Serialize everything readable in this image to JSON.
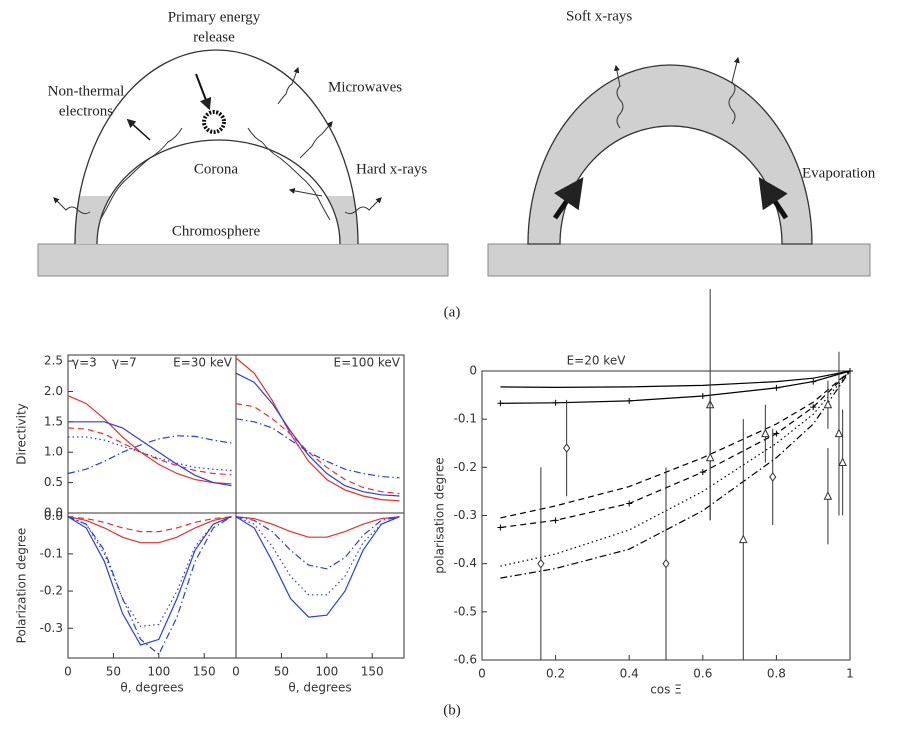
{
  "diagram": {
    "left": {
      "primary": [
        "Primary energy",
        "release"
      ],
      "nonthermal": [
        "Non-thermal",
        "electrons"
      ],
      "microwaves": "Microwaves",
      "corona": "Corona",
      "hardxrays": "Hard x-rays",
      "chromosphere": "Chromosphere"
    },
    "right": {
      "softxrays": "Soft x-rays",
      "evaporation": "Evaporation"
    },
    "label_a": "(a)",
    "label_b": "(b)"
  },
  "chart_data": [
    {
      "type": "line",
      "ylabel": "Directivity",
      "annotations": [
        {
          "text": "γ=3",
          "color": "#e8302a"
        },
        {
          "text": "γ=7",
          "color": "#2a3fe0"
        },
        {
          "text": "E=30 keV",
          "color": "#555555"
        }
      ],
      "xlim": [
        0,
        185
      ],
      "ylim": [
        0,
        2.6
      ],
      "yticks": [
        {
          "value": 0,
          "label": "0.0"
        },
        0.5,
        {
          "value": 1,
          "label": "1.0"
        },
        1.5,
        {
          "value": 2,
          "label": "2.0"
        },
        2.5
      ],
      "x": [
        0,
        20,
        40,
        60,
        80,
        100,
        120,
        140,
        160,
        180
      ],
      "series": [
        {
          "color": "#e8302a",
          "dash": "solid",
          "values": [
            1.93,
            1.8,
            1.55,
            1.25,
            1.0,
            0.8,
            0.65,
            0.55,
            0.5,
            0.48
          ]
        },
        {
          "color": "#e8302a",
          "dash": "dashed",
          "values": [
            1.4,
            1.38,
            1.3,
            1.15,
            1.0,
            0.88,
            0.78,
            0.7,
            0.65,
            0.63
          ]
        },
        {
          "color": "#2a3fe0",
          "dash": "solid",
          "values": [
            1.5,
            1.5,
            1.5,
            1.4,
            1.2,
            1.0,
            0.8,
            0.62,
            0.5,
            0.45
          ]
        },
        {
          "color": "#2a3fe0",
          "dash": "dashdot",
          "values": [
            0.65,
            0.72,
            0.85,
            1.0,
            1.12,
            1.22,
            1.27,
            1.26,
            1.2,
            1.15
          ]
        },
        {
          "color": "#2a3fe0",
          "dash": "dotted",
          "values": [
            1.25,
            1.25,
            1.2,
            1.1,
            1.0,
            0.9,
            0.82,
            0.75,
            0.72,
            0.7
          ]
        }
      ]
    },
    {
      "type": "line",
      "annotations": [
        {
          "text": "E=100 keV",
          "color": "#555555"
        }
      ],
      "xlim": [
        0,
        185
      ],
      "ylim": [
        0,
        2.6
      ],
      "x": [
        0,
        20,
        40,
        60,
        80,
        100,
        120,
        140,
        160,
        180
      ],
      "series": [
        {
          "color": "#e8302a",
          "dash": "solid",
          "values": [
            2.55,
            2.3,
            1.85,
            1.3,
            0.85,
            0.55,
            0.38,
            0.28,
            0.22,
            0.2
          ]
        },
        {
          "color": "#e8302a",
          "dash": "dashed",
          "values": [
            1.8,
            1.75,
            1.55,
            1.3,
            1.0,
            0.75,
            0.55,
            0.42,
            0.35,
            0.32
          ]
        },
        {
          "color": "#2a3fe0",
          "dash": "solid",
          "values": [
            2.3,
            2.15,
            1.8,
            1.35,
            0.95,
            0.65,
            0.45,
            0.35,
            0.3,
            0.28
          ]
        },
        {
          "color": "#2a3fe0",
          "dash": "dashdot",
          "values": [
            1.55,
            1.5,
            1.4,
            1.2,
            1.0,
            0.85,
            0.72,
            0.65,
            0.6,
            0.58
          ]
        }
      ]
    },
    {
      "type": "line",
      "ylabel": "Polarization degree",
      "xlabel": "θ, degrees",
      "xlim": [
        0,
        185
      ],
      "ylim": [
        -0.38,
        0.01
      ],
      "xticks": [
        0,
        50,
        100,
        150
      ],
      "yticks": [
        {
          "value": 0,
          "label": "0.0"
        },
        -0.1,
        -0.2,
        -0.3
      ],
      "x": [
        0,
        20,
        40,
        60,
        80,
        100,
        120,
        140,
        160,
        180
      ],
      "series": [
        {
          "color": "#e8302a",
          "dash": "solid",
          "values": [
            0,
            -0.01,
            -0.03,
            -0.055,
            -0.07,
            -0.07,
            -0.055,
            -0.03,
            -0.01,
            0
          ]
        },
        {
          "color": "#e8302a",
          "dash": "dashed",
          "values": [
            0,
            -0.005,
            -0.015,
            -0.03,
            -0.04,
            -0.04,
            -0.03,
            -0.015,
            -0.005,
            0
          ]
        },
        {
          "color": "#2a3fe0",
          "dash": "solid",
          "values": [
            0,
            -0.03,
            -0.12,
            -0.26,
            -0.345,
            -0.33,
            -0.22,
            -0.09,
            -0.02,
            0
          ]
        },
        {
          "color": "#2a3fe0",
          "dash": "dotted",
          "values": [
            0,
            -0.02,
            -0.1,
            -0.22,
            -0.295,
            -0.29,
            -0.2,
            -0.08,
            -0.02,
            0
          ]
        },
        {
          "color": "#2a3fe0",
          "dash": "dashdot",
          "values": [
            0,
            -0.02,
            -0.09,
            -0.22,
            -0.33,
            -0.37,
            -0.27,
            -0.12,
            -0.03,
            0
          ]
        }
      ]
    },
    {
      "type": "line",
      "xlabel": "θ, degrees",
      "xlim": [
        0,
        185
      ],
      "ylim": [
        -0.38,
        0.01
      ],
      "xticks": [
        0,
        50,
        100,
        150
      ],
      "x": [
        0,
        20,
        40,
        60,
        80,
        100,
        120,
        140,
        160,
        180
      ],
      "series": [
        {
          "color": "#e8302a",
          "dash": "solid",
          "values": [
            0,
            -0.005,
            -0.02,
            -0.04,
            -0.055,
            -0.055,
            -0.04,
            -0.02,
            -0.005,
            0
          ]
        },
        {
          "color": "#2a3fe0",
          "dash": "solid",
          "values": [
            0,
            -0.03,
            -0.12,
            -0.22,
            -0.27,
            -0.265,
            -0.2,
            -0.09,
            -0.02,
            0
          ]
        },
        {
          "color": "#2a3fe0",
          "dash": "dotted",
          "values": [
            0,
            -0.02,
            -0.08,
            -0.16,
            -0.21,
            -0.21,
            -0.16,
            -0.07,
            -0.02,
            0
          ]
        },
        {
          "color": "#2a3fe0",
          "dash": "dashdot",
          "values": [
            0,
            -0.01,
            -0.04,
            -0.09,
            -0.13,
            -0.14,
            -0.11,
            -0.05,
            -0.01,
            0
          ]
        }
      ]
    },
    {
      "type": "line",
      "title": "E=20 keV",
      "xlabel": "cos Ξ",
      "ylabel": "polarisation degree",
      "xlim": [
        0,
        1
      ],
      "ylim": [
        -0.6,
        0
      ],
      "xticks": [
        0,
        0.2,
        0.4,
        0.6,
        0.8,
        1
      ],
      "yticks": [
        0,
        -0.1,
        -0.2,
        -0.3,
        -0.4,
        -0.5,
        -0.6
      ],
      "x": [
        0.05,
        0.2,
        0.4,
        0.6,
        0.8,
        0.9,
        1
      ],
      "series": [
        {
          "color": "#000000",
          "dash": "solid",
          "values": [
            -0.033,
            -0.034,
            -0.033,
            -0.03,
            -0.022,
            -0.015,
            0
          ]
        },
        {
          "color": "#000000",
          "dash": "solid",
          "marker": "+",
          "values": [
            -0.067,
            -0.066,
            -0.062,
            -0.052,
            -0.035,
            -0.022,
            0
          ]
        },
        {
          "color": "#000000",
          "dash": "dashed",
          "values": [
            -0.305,
            -0.28,
            -0.24,
            -0.18,
            -0.11,
            -0.065,
            0
          ]
        },
        {
          "color": "#000000",
          "dash": "dashed",
          "marker": "+",
          "values": [
            -0.325,
            -0.31,
            -0.275,
            -0.21,
            -0.13,
            -0.075,
            0
          ]
        },
        {
          "color": "#000000",
          "dash": "dotted",
          "values": [
            -0.405,
            -0.38,
            -0.33,
            -0.25,
            -0.15,
            -0.09,
            0
          ]
        },
        {
          "color": "#000000",
          "dash": "dashdot",
          "values": [
            -0.43,
            -0.41,
            -0.37,
            -0.29,
            -0.18,
            -0.11,
            0
          ]
        }
      ],
      "points": [
        {
          "marker": "diamond",
          "x": [
            0.16,
            0.23,
            0.5,
            0.79
          ],
          "values": [
            -0.4,
            -0.16,
            -0.4,
            -0.22
          ],
          "errors": [
            0.2,
            0.1,
            0.2,
            0.1
          ]
        },
        {
          "marker": "triangle",
          "x": [
            0.62,
            0.62,
            0.71,
            0.77,
            0.94,
            0.94,
            0.97,
            0.98
          ],
          "values": [
            -0.07,
            -0.18,
            -0.35,
            -0.13,
            -0.26,
            -0.07,
            -0.13,
            -0.19
          ],
          "errors": [
            0.24,
            0.13,
            0.25,
            0.06,
            0.1,
            0.05,
            0.17,
            0.11
          ]
        }
      ]
    }
  ]
}
